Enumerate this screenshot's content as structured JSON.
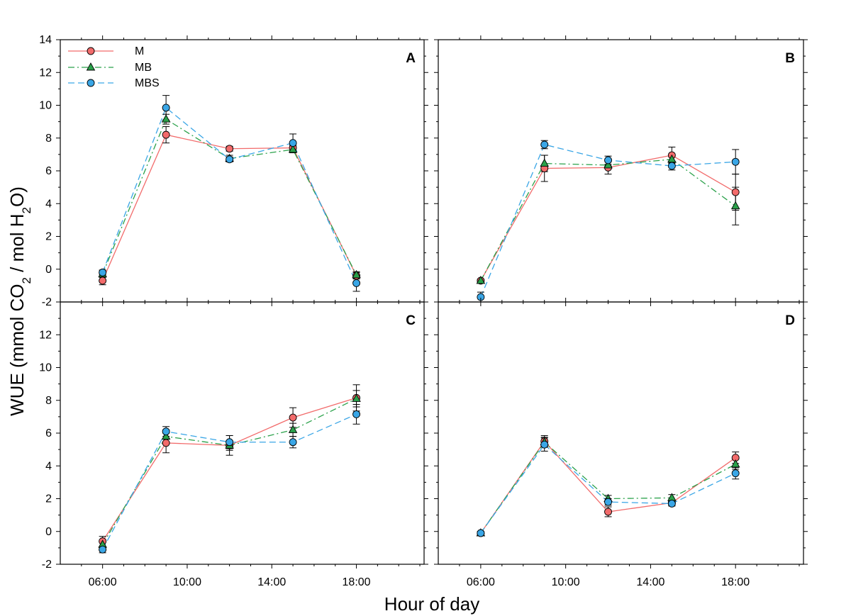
{
  "chart_data": {
    "type": "line",
    "title": "",
    "xlabel": "Hour of day",
    "ylabel": "WUE (mmol CO2 / mol H2O)",
    "ylabel_parts": {
      "pre": "WUE (mmol CO",
      "sub1": "2",
      "mid": " / mol H",
      "sub2": "2",
      "post": "O)"
    },
    "x_hours": [
      6,
      9,
      12,
      15,
      18
    ],
    "x_tick_values": [
      6,
      10,
      14,
      18
    ],
    "x_tick_labels": [
      "06:00",
      "10:00",
      "14:00",
      "18:00"
    ],
    "xlim": [
      4.0,
      21.2
    ],
    "ylim": [
      -2,
      14
    ],
    "y_tick_values": [
      -2,
      0,
      2,
      4,
      6,
      8,
      10,
      12,
      14
    ],
    "y_tick_labels": [
      "-2",
      "0",
      "2",
      "4",
      "6",
      "8",
      "10",
      "12",
      "14"
    ],
    "colors": {
      "M": "#f26b6b",
      "MB": "#2aa14a",
      "MBS": "#3aa6e6"
    },
    "legend": [
      {
        "name": "M",
        "label": "M",
        "marker": "circle",
        "dash": "solid"
      },
      {
        "name": "MB",
        "label": "MB",
        "marker": "triangle",
        "dash": "dashdot"
      },
      {
        "name": "MBS",
        "label": "MBS",
        "marker": "circle",
        "dash": "dash"
      }
    ],
    "panels": [
      {
        "label": "A",
        "series": [
          {
            "name": "M",
            "values": [
              -0.7,
              8.2,
              7.35,
              7.4,
              -0.4
            ],
            "errors": [
              0.25,
              0.5,
              0.15,
              0.15,
              0.2
            ]
          },
          {
            "name": "MB",
            "values": [
              -0.3,
              9.15,
              6.75,
              7.3,
              -0.35
            ],
            "errors": [
              0.2,
              0.3,
              0.2,
              0.2,
              0.2
            ]
          },
          {
            "name": "MBS",
            "values": [
              -0.2,
              9.85,
              6.7,
              7.7,
              -0.85
            ],
            "errors": [
              0.15,
              0.75,
              0.15,
              0.55,
              0.5
            ]
          }
        ]
      },
      {
        "label": "B",
        "series": [
          {
            "name": "M",
            "values": [
              -0.7,
              6.15,
              6.2,
              6.95,
              4.7
            ],
            "errors": [
              0.1,
              0.8,
              0.4,
              0.5,
              1.1
            ]
          },
          {
            "name": "MB",
            "values": [
              -0.7,
              6.45,
              6.35,
              6.7,
              3.85
            ],
            "errors": [
              0.1,
              0.5,
              0.2,
              0.2,
              1.15
            ]
          },
          {
            "name": "MBS",
            "values": [
              -1.7,
              7.6,
              6.65,
              6.3,
              6.55
            ],
            "errors": [
              0.3,
              0.25,
              0.25,
              0.25,
              0.75
            ]
          }
        ]
      },
      {
        "label": "C",
        "series": [
          {
            "name": "M",
            "values": [
              -0.6,
              5.4,
              5.25,
              6.95,
              8.15
            ],
            "errors": [
              0.3,
              0.6,
              0.6,
              0.6,
              0.8
            ]
          },
          {
            "name": "MB",
            "values": [
              -0.8,
              5.8,
              5.25,
              6.2,
              8.1
            ],
            "errors": [
              0.3,
              0.4,
              0.3,
              0.4,
              0.5
            ]
          },
          {
            "name": "MBS",
            "values": [
              -1.1,
              6.1,
              5.45,
              5.45,
              7.15
            ],
            "errors": [
              0.2,
              0.3,
              0.4,
              0.35,
              0.6
            ]
          }
        ]
      },
      {
        "label": "D",
        "series": [
          {
            "name": "M",
            "values": [
              -0.1,
              5.5,
              1.2,
              1.75,
              4.5
            ],
            "errors": [
              0.1,
              0.35,
              0.3,
              0.15,
              0.35
            ]
          },
          {
            "name": "MB",
            "values": [
              -0.1,
              5.45,
              2.0,
              2.05,
              4.1
            ],
            "errors": [
              0.1,
              0.3,
              0.2,
              0.2,
              0.3
            ]
          },
          {
            "name": "MBS",
            "values": [
              -0.1,
              5.3,
              1.8,
              1.7,
              3.55
            ],
            "errors": [
              0.1,
              0.4,
              0.2,
              0.15,
              0.35
            ]
          }
        ]
      }
    ]
  }
}
